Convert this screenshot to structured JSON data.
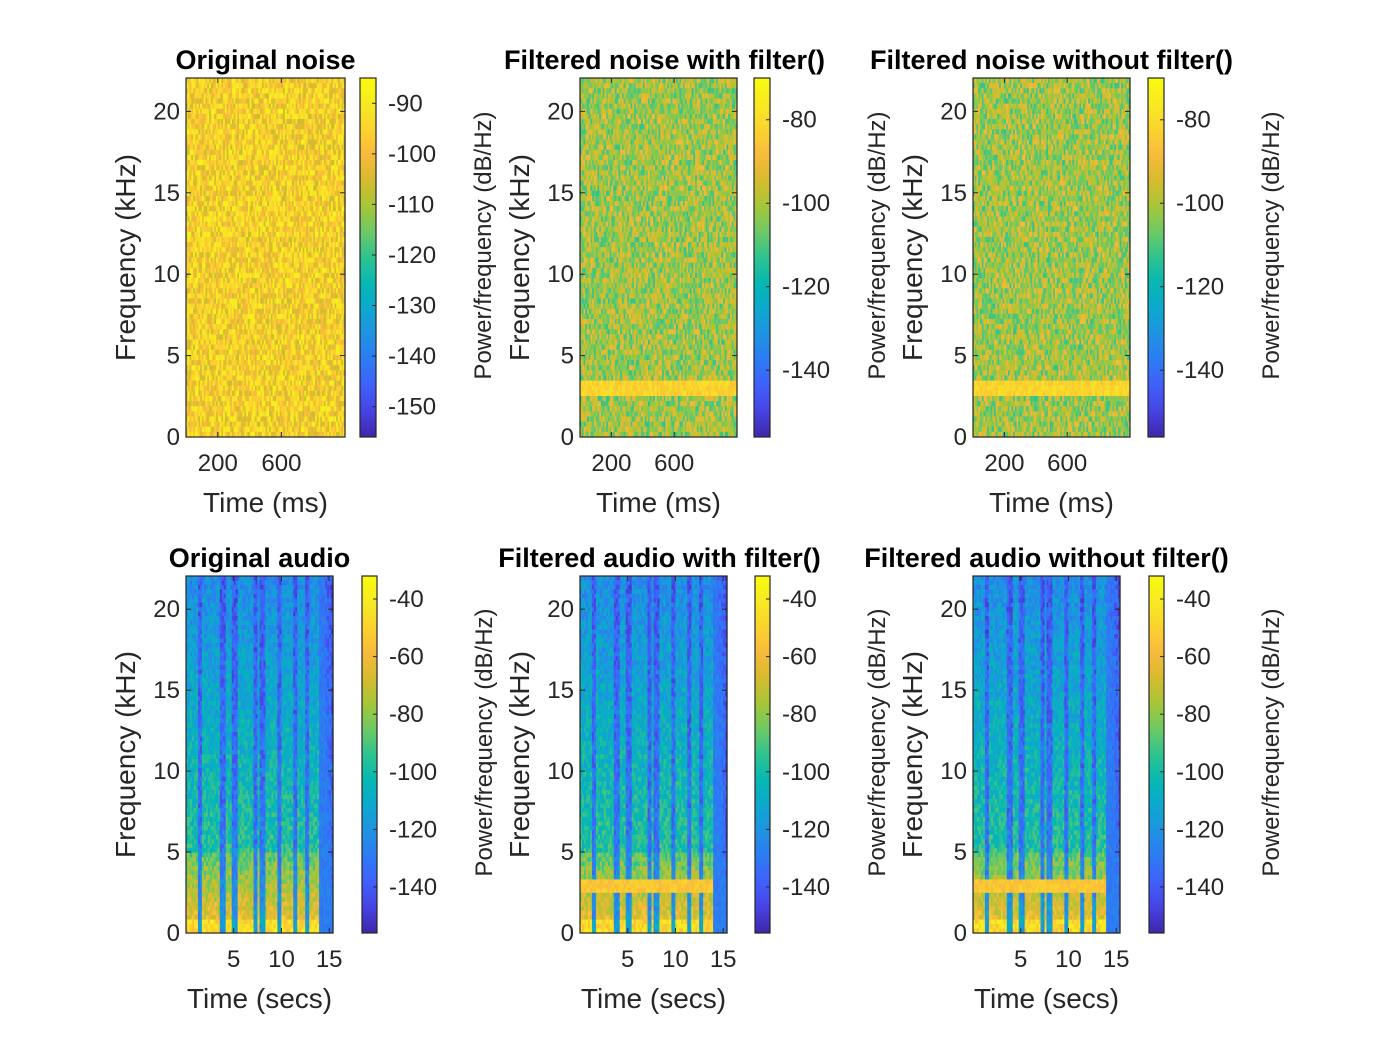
{
  "colors": {
    "axis": "#262626",
    "background": "#ffffff"
  },
  "colormap": [
    "#3e26a8",
    "#4743e3",
    "#4060fb",
    "#2d7bf4",
    "#1f93e2",
    "#0da8cf",
    "#06b8b2",
    "#2ec38f",
    "#6dc965",
    "#a6c638",
    "#d6bb2e",
    "#f8ba3c",
    "#fbd32e",
    "#f7ea22",
    "#f9fb0e"
  ],
  "chart_data": [
    {
      "type": "heatmap",
      "kind": "noise",
      "hasBand": false,
      "level": 0.83,
      "title": "Original noise",
      "xlabel": "Time (ms)",
      "ylabel": "Frequency (kHz)",
      "colorbar_label": "Power/frequency (dB/Hz)",
      "xlim": [
        0,
        1000
      ],
      "ylim": [
        0,
        22.05
      ],
      "xticks": [
        200,
        600
      ],
      "yticks": [
        0,
        5,
        10,
        15,
        20
      ],
      "clim": [
        -156,
        -85
      ],
      "cticks": [
        -90,
        -100,
        -110,
        -120,
        -130,
        -140,
        -150
      ]
    },
    {
      "type": "heatmap",
      "kind": "noise",
      "hasBand": true,
      "level": 0.64,
      "title": "Filtered noise with filter()",
      "xlabel": "Time (ms)",
      "ylabel": "Frequency (kHz)",
      "colorbar_label": "Power/frequency (dB/Hz)",
      "xlim": [
        0,
        1000
      ],
      "ylim": [
        0,
        22.05
      ],
      "xticks": [
        200,
        600
      ],
      "yticks": [
        0,
        5,
        10,
        15,
        20
      ],
      "clim": [
        -156,
        -70
      ],
      "cticks": [
        -80,
        -100,
        -120,
        -140
      ]
    },
    {
      "type": "heatmap",
      "kind": "noise",
      "hasBand": true,
      "level": 0.64,
      "title": "Filtered noise without filter()",
      "xlabel": "Time (ms)",
      "ylabel": "Frequency (kHz)",
      "colorbar_label": "Power/frequency (dB/Hz)",
      "xlim": [
        0,
        1000
      ],
      "ylim": [
        0,
        22.05
      ],
      "xticks": [
        200,
        600
      ],
      "yticks": [
        0,
        5,
        10,
        15,
        20
      ],
      "clim": [
        -156,
        -70
      ],
      "cticks": [
        -80,
        -100,
        -120,
        -140
      ]
    },
    {
      "type": "heatmap",
      "kind": "audio",
      "hasBand": false,
      "title": "Original audio",
      "xlabel": "Time (secs)",
      "ylabel": "Frequency (kHz)",
      "colorbar_label": "Power/frequency (dB/Hz)",
      "xlim": [
        0,
        15.4
      ],
      "ylim": [
        0,
        22.05
      ],
      "xticks": [
        5,
        10,
        15
      ],
      "yticks": [
        0,
        5,
        10,
        15,
        20
      ],
      "clim": [
        -156,
        -32
      ],
      "cticks": [
        -40,
        -60,
        -80,
        -100,
        -120,
        -140
      ]
    },
    {
      "type": "heatmap",
      "kind": "audio",
      "hasBand": true,
      "title": "Filtered audio with filter()",
      "xlabel": "Time (secs)",
      "ylabel": "Frequency (kHz)",
      "colorbar_label": "Power/frequency (dB/Hz)",
      "xlim": [
        0,
        15.4
      ],
      "ylim": [
        0,
        22.05
      ],
      "xticks": [
        5,
        10,
        15
      ],
      "yticks": [
        0,
        5,
        10,
        15,
        20
      ],
      "clim": [
        -156,
        -32
      ],
      "cticks": [
        -40,
        -60,
        -80,
        -100,
        -120,
        -140
      ]
    },
    {
      "type": "heatmap",
      "kind": "audio",
      "hasBand": true,
      "title": "Filtered audio without filter()",
      "xlabel": "Time (secs)",
      "ylabel": "Frequency (kHz)",
      "colorbar_label": "Power/frequency (dB/Hz)",
      "xlim": [
        0,
        15.4
      ],
      "ylim": [
        0,
        22.05
      ],
      "xticks": [
        5,
        10,
        15
      ],
      "yticks": [
        0,
        5,
        10,
        15,
        20
      ],
      "clim": [
        -156,
        -32
      ],
      "cticks": [
        -40,
        -60,
        -80,
        -100,
        -120,
        -140
      ]
    }
  ]
}
